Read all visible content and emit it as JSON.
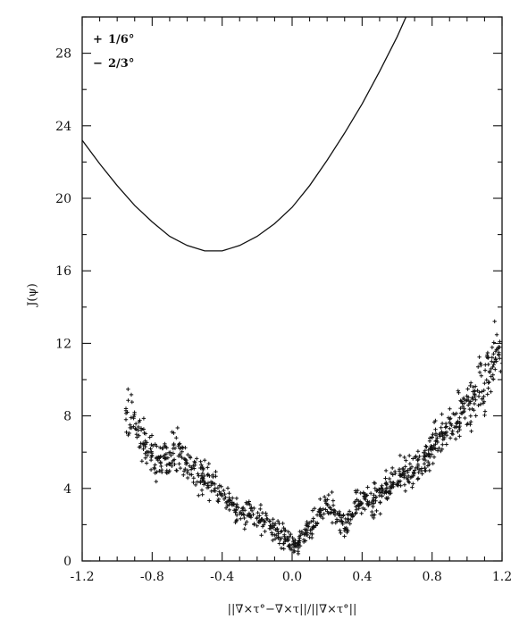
{
  "chart_data": {
    "type": "scatter",
    "title": "",
    "xlabel": "||∇×τ°−∇×τ||/||∇×τ°||",
    "ylabel": "J(ψ)",
    "xlim": [
      -1.2,
      1.2
    ],
    "ylim": [
      0,
      30
    ],
    "xticks": [
      -1.2,
      -0.8,
      -0.4,
      0.0,
      0.4,
      0.8,
      1.2
    ],
    "xtick_labels": [
      "-1.2",
      "-0.8",
      "-0.4",
      "0.0",
      "0.4",
      "0.8",
      "1.2"
    ],
    "yticks": [
      0,
      4,
      8,
      12,
      16,
      20,
      24,
      28
    ],
    "ytick_labels": [
      "0",
      "4",
      "8",
      "12",
      "16",
      "20",
      "24",
      "28"
    ],
    "grid": false,
    "legend_position": "top-left",
    "legend": [
      {
        "symbol": "+",
        "label": "1/6°"
      },
      {
        "symbol": "−",
        "label": "2/3°"
      }
    ],
    "series": [
      {
        "name": "1/6°",
        "style": "markers",
        "marker": "+",
        "x": [
          -0.95,
          -0.92,
          -0.88,
          -0.84,
          -0.8,
          -0.76,
          -0.72,
          -0.68,
          -0.64,
          -0.6,
          -0.56,
          -0.52,
          -0.48,
          -0.44,
          -0.4,
          -0.36,
          -0.32,
          -0.28,
          -0.24,
          -0.2,
          -0.16,
          -0.12,
          -0.08,
          -0.04,
          0.0,
          0.02,
          0.04,
          0.08,
          0.12,
          0.16,
          0.2,
          0.24,
          0.28,
          0.3,
          0.34,
          0.38,
          0.42,
          0.46,
          0.5,
          0.54,
          0.58,
          0.62,
          0.66,
          0.7,
          0.74,
          0.78,
          0.82,
          0.86,
          0.9,
          0.94,
          0.98,
          1.02,
          1.06,
          1.1,
          1.14,
          1.18,
          1.2
        ],
        "y": [
          8.4,
          7.9,
          7.2,
          6.3,
          5.8,
          5.7,
          5.9,
          6.2,
          5.8,
          5.4,
          5.1,
          4.7,
          4.3,
          4.0,
          3.6,
          3.1,
          2.8,
          2.6,
          2.5,
          2.4,
          2.2,
          1.9,
          1.6,
          1.2,
          0.9,
          0.8,
          1.0,
          1.7,
          2.2,
          2.7,
          3.1,
          2.8,
          2.2,
          1.8,
          2.5,
          3.1,
          3.4,
          3.3,
          3.6,
          4.0,
          4.3,
          4.7,
          5.0,
          5.0,
          5.1,
          5.9,
          6.6,
          7.0,
          7.3,
          7.6,
          8.2,
          8.8,
          9.4,
          9.8,
          11.0,
          11.8,
          10.9
        ]
      },
      {
        "name": "2/3°",
        "style": "line",
        "x": [
          -1.2,
          -1.1,
          -1.0,
          -0.9,
          -0.8,
          -0.7,
          -0.6,
          -0.5,
          -0.4,
          -0.3,
          -0.2,
          -0.1,
          0.0,
          0.1,
          0.2,
          0.3,
          0.4,
          0.5,
          0.6,
          0.66
        ],
        "y": [
          23.2,
          21.9,
          20.7,
          19.6,
          18.7,
          17.9,
          17.4,
          17.1,
          17.1,
          17.4,
          17.9,
          18.6,
          19.5,
          20.7,
          22.1,
          23.6,
          25.2,
          27.0,
          28.9,
          30.2
        ]
      }
    ]
  }
}
